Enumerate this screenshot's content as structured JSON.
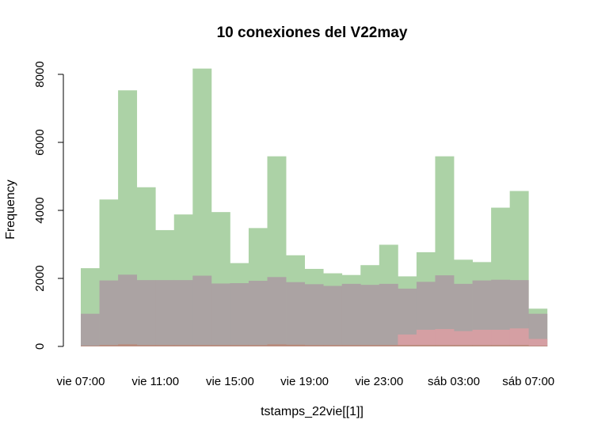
{
  "chart_data": {
    "type": "bar",
    "title": "10 conexiones del V22may",
    "xlabel": "tstamps_22vie[[1]]",
    "ylabel": "Frequency",
    "ylim": [
      0,
      8200
    ],
    "y_ticks": [
      0,
      2000,
      4000,
      6000,
      8000
    ],
    "x_ticks": [
      "vie 07:00",
      "vie 11:00",
      "vie 15:00",
      "vie 19:00",
      "vie 23:00",
      "sáb 03:00",
      "sáb 07:00"
    ],
    "bin_hours": 1,
    "bin_start": "vie 07:00",
    "bin_count": 25,
    "series": [
      {
        "color": "#ACD2A6",
        "values": [
          2300,
          4320,
          7530,
          4680,
          3420,
          3880,
          8170,
          3950,
          2450,
          3480,
          5590,
          2680,
          2280,
          2150,
          2100,
          2390,
          2990,
          2060,
          2770,
          5590,
          2550,
          2480,
          4080,
          4570,
          1110
        ]
      },
      {
        "color": "#ABA3A3",
        "values": [
          960,
          1940,
          2110,
          1950,
          1950,
          1950,
          2080,
          1850,
          1860,
          1930,
          2040,
          1890,
          1830,
          1780,
          1840,
          1810,
          1840,
          1700,
          1900,
          2090,
          1840,
          1940,
          1960,
          1950,
          960
        ]
      },
      {
        "color": "#D59FA3",
        "values": [
          0,
          0,
          0,
          0,
          0,
          0,
          0,
          0,
          0,
          0,
          0,
          0,
          0,
          0,
          0,
          0,
          0,
          350,
          490,
          510,
          450,
          490,
          490,
          530,
          220
        ]
      },
      {
        "color": "#B98A7A",
        "values": [
          20,
          40,
          60,
          40,
          40,
          40,
          40,
          40,
          40,
          40,
          60,
          50,
          40,
          40,
          40,
          40,
          40,
          40,
          40,
          40,
          40,
          40,
          40,
          40,
          20
        ]
      }
    ]
  }
}
